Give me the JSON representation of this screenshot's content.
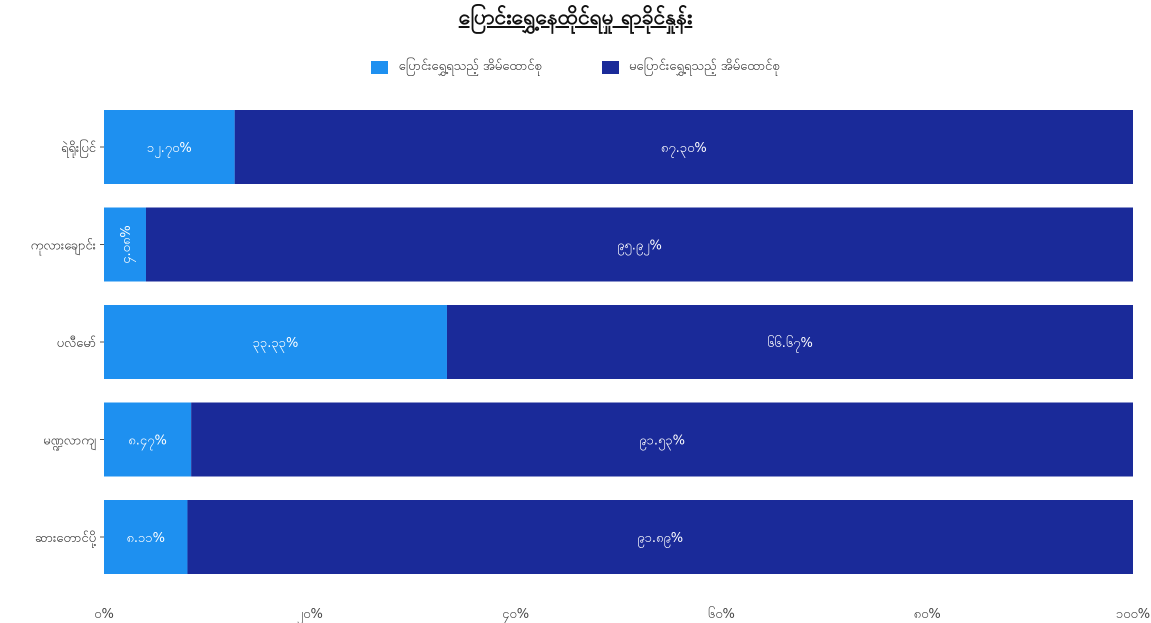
{
  "chart_data": {
    "type": "bar",
    "orientation": "horizontal",
    "stacked": true,
    "title": "ပြောင်းရွှေ့နေထိုင်ရမှု ရာခိုင်နှုန်း",
    "categories": [
      "ရဲရိုးပြင်",
      "ကုလားချောင်း",
      "ပလီမော်",
      "မဏ္ဍလာကျ",
      "ဆားတောင်ပို့"
    ],
    "series": [
      {
        "name": "ပြောင်းရွှေ့ရသည့် အိမ်ထောင်စု",
        "color": "#1e90f0",
        "values": [
          12.7,
          4.08,
          33.33,
          8.47,
          8.11
        ],
        "labels": [
          "၁၂.၇၀%",
          "၄.၀၈%",
          "၃၃.၃၃%",
          "၈.၄၇%",
          "၈.၁၁%"
        ]
      },
      {
        "name": "မပြောင်းရွှေ့ရသည့် အိမ်ထောင်စု",
        "color": "#1a2a99",
        "values": [
          87.3,
          95.92,
          66.67,
          91.53,
          91.89
        ],
        "labels": [
          "၈၇.၃၀%",
          "၉၅.၉၂%",
          "၆၆.၆၇%",
          "၉၁.၅၃%",
          "၉၁.၈၉%"
        ]
      }
    ],
    "xlim": [
      0,
      100
    ],
    "x_ticks": [
      0,
      20,
      40,
      60,
      80,
      100
    ],
    "x_tick_labels": [
      "၀%",
      "၂၀%",
      "၄၀%",
      "၆၀%",
      "၈၀%",
      "၁၀၀%"
    ],
    "grid": false,
    "legend_position": "top-center"
  }
}
